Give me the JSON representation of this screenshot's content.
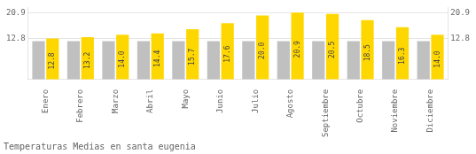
{
  "chart_data": {
    "type": "bar",
    "title": "Temperaturas Medias en santa eugenia",
    "categories": [
      "Enero",
      "Febrero",
      "Marzo",
      "Abril",
      "Mayo",
      "Junio",
      "Julio",
      "Agosto",
      "Septiembre",
      "Octubre",
      "Noviembre",
      "Diciembre"
    ],
    "series": [
      {
        "color": "#C0C0C0",
        "values": [
          12.0,
          12.0,
          12.0,
          12.0,
          12.0,
          12.0,
          12.0,
          12.0,
          12.0,
          12.0,
          12.0,
          12.0
        ]
      },
      {
        "color": "#FFD700",
        "values": [
          12.8,
          13.2,
          14.0,
          14.4,
          15.7,
          17.6,
          20.0,
          20.9,
          20.5,
          18.5,
          16.3,
          14.0
        ],
        "value_labels": [
          "12.8",
          "13.2",
          "14.0",
          "14.4",
          "15.7",
          "17.6",
          "20.0",
          "20.9",
          "20.5",
          "18.5",
          "16.3",
          "14.0"
        ],
        "data_labels": true
      }
    ],
    "ylim": [
      0,
      22.5
    ],
    "yticks": [
      12.8,
      20.9
    ],
    "y2lim": [
      0,
      22.5
    ],
    "y2ticks": [
      12.8,
      20.9
    ],
    "grid": true
  }
}
